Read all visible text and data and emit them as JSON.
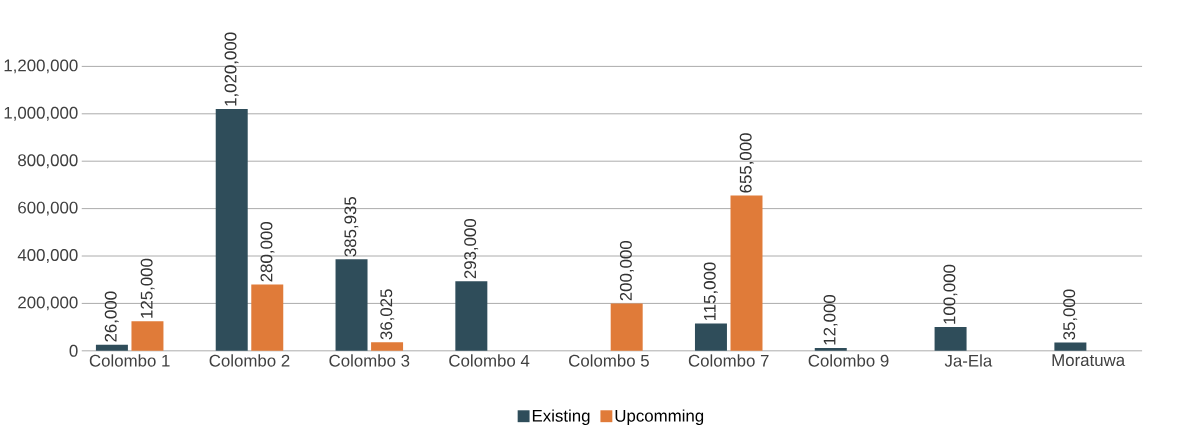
{
  "chart_data": {
    "type": "bar",
    "categories": [
      "Colombo 1",
      "Colombo 2",
      "Colombo 3",
      "Colombo 4",
      "Colombo 5",
      "Colombo 7",
      "Colombo 9",
      "Ja-Ela",
      "Moratuwa"
    ],
    "series": [
      {
        "name": "Existing",
        "color": "#2f4d5a",
        "values": [
          26000,
          1020000,
          385935,
          293000,
          null,
          115000,
          12000,
          100000,
          35000
        ],
        "value_labels": [
          "26,000",
          "1,020,000",
          "385,935",
          "293,000",
          null,
          "115,000",
          "12,000",
          "100,000",
          "35,000"
        ]
      },
      {
        "name": "Upcomming",
        "color": "#e07b39",
        "values": [
          125000,
          280000,
          36025,
          null,
          200000,
          655000,
          null,
          null,
          null
        ],
        "value_labels": [
          "125,000",
          "280,000",
          "36,025",
          null,
          "200,000",
          "655,000",
          null,
          null,
          null
        ]
      }
    ],
    "ylim": [
      0,
      1200000
    ],
    "yticks": [
      {
        "value": 0,
        "label": "0"
      },
      {
        "value": 200000,
        "label": "200,000"
      },
      {
        "value": 400000,
        "label": "400,000"
      },
      {
        "value": 600000,
        "label": "600,000"
      },
      {
        "value": 800000,
        "label": "800,000"
      },
      {
        "value": 1000000,
        "label": "1,000,000"
      },
      {
        "value": 1200000,
        "label": "1,200,000"
      }
    ],
    "grid": "y",
    "legend": "bottom"
  }
}
